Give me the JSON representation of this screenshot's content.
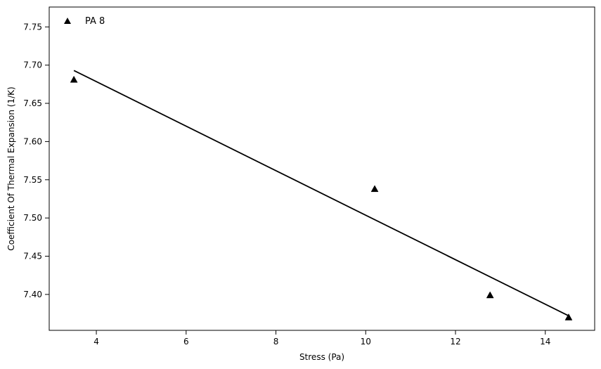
{
  "chart_data": {
    "type": "scatter",
    "title": "",
    "xlabel": "Stress (Pa)",
    "ylabel": "Coefficient Of Thermal Expansion (1/K)",
    "xlim": [
      2.95,
      15.1
    ],
    "ylim": [
      7.353,
      7.776
    ],
    "xticks": [
      4,
      6,
      8,
      10,
      12,
      14
    ],
    "xtick_labels": [
      "4",
      "6",
      "8",
      "10",
      "12",
      "14"
    ],
    "yticks": [
      7.4,
      7.45,
      7.5,
      7.55,
      7.6,
      7.65,
      7.7,
      7.75
    ],
    "ytick_labels": [
      "7.40",
      "7.45",
      "7.50",
      "7.55",
      "7.60",
      "7.65",
      "7.70",
      "7.75"
    ],
    "grid": false,
    "legend": {
      "position": "top-left",
      "entries": [
        {
          "label": "PA 8",
          "marker": "triangle"
        }
      ]
    },
    "series": [
      {
        "name": "PA 8",
        "marker": "triangle",
        "color": "#000000",
        "x": [
          3.5,
          10.2,
          12.77,
          14.52
        ],
        "y": [
          7.681,
          7.538,
          7.399,
          7.37
        ]
      }
    ],
    "fit_line": {
      "color": "#000000",
      "x": [
        3.5,
        14.52
      ],
      "y": [
        7.693,
        7.372
      ]
    }
  }
}
